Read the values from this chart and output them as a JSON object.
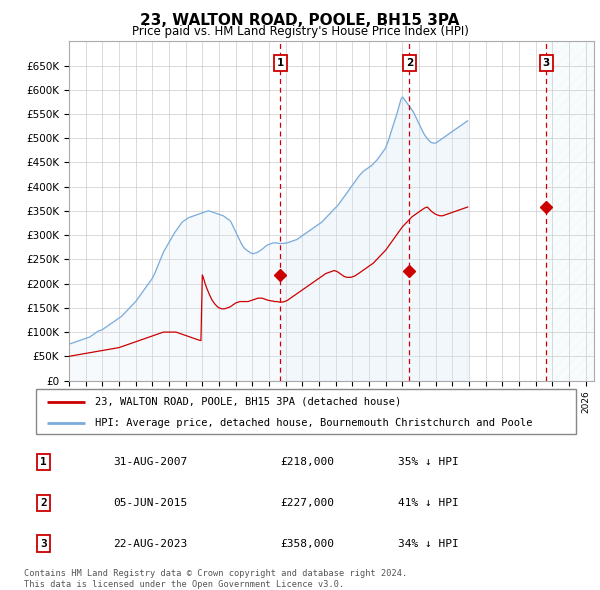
{
  "title": "23, WALTON ROAD, POOLE, BH15 3PA",
  "subtitle": "Price paid vs. HM Land Registry's House Price Index (HPI)",
  "ylim": [
    0,
    700000
  ],
  "yticks": [
    0,
    50000,
    100000,
    150000,
    200000,
    250000,
    300000,
    350000,
    400000,
    450000,
    500000,
    550000,
    600000,
    650000
  ],
  "ytick_labels": [
    "£0",
    "£50K",
    "£100K",
    "£150K",
    "£200K",
    "£250K",
    "£300K",
    "£350K",
    "£400K",
    "£450K",
    "£500K",
    "£550K",
    "£600K",
    "£650K"
  ],
  "xlim_start": 1995.0,
  "xlim_end": 2026.5,
  "sale_dates": [
    2007.667,
    2015.417,
    2023.639
  ],
  "sale_prices": [
    218000,
    227000,
    358000
  ],
  "sale_labels": [
    "1",
    "2",
    "3"
  ],
  "red_line_color": "#cc0000",
  "blue_line_color": "#7aabdb",
  "blue_fill_color": "#d6e8f7",
  "dashed_line_color": "#cc0000",
  "shaded_fill_color": "#d6e8f7",
  "legend_label_red": "23, WALTON ROAD, POOLE, BH15 3PA (detached house)",
  "legend_label_blue": "HPI: Average price, detached house, Bournemouth Christchurch and Poole",
  "table_rows": [
    [
      "1",
      "31-AUG-2007",
      "£218,000",
      "35% ↓ HPI"
    ],
    [
      "2",
      "05-JUN-2015",
      "£227,000",
      "41% ↓ HPI"
    ],
    [
      "3",
      "22-AUG-2023",
      "£358,000",
      "34% ↓ HPI"
    ]
  ],
  "footnote": "Contains HM Land Registry data © Crown copyright and database right 2024.\nThis data is licensed under the Open Government Licence v3.0.",
  "hpi_monthly": {
    "start_year": 1995,
    "start_month": 1,
    "values": [
      75000,
      76000,
      77000,
      78000,
      79000,
      80000,
      81000,
      82000,
      83000,
      84000,
      85000,
      86000,
      87000,
      88000,
      89000,
      90000,
      92000,
      94000,
      96000,
      98000,
      100000,
      102000,
      103000,
      104000,
      105000,
      107000,
      109000,
      111000,
      113000,
      115000,
      117000,
      119000,
      121000,
      123000,
      125000,
      127000,
      129000,
      131000,
      133000,
      136000,
      139000,
      142000,
      145000,
      148000,
      151000,
      154000,
      157000,
      160000,
      163000,
      167000,
      171000,
      175000,
      179000,
      183000,
      187000,
      191000,
      195000,
      199000,
      203000,
      207000,
      211000,
      217000,
      223000,
      230000,
      237000,
      244000,
      251000,
      258000,
      265000,
      270000,
      275000,
      280000,
      285000,
      290000,
      295000,
      300000,
      305000,
      309000,
      313000,
      317000,
      321000,
      325000,
      328000,
      330000,
      332000,
      334000,
      336000,
      337000,
      338000,
      339000,
      340000,
      341000,
      342000,
      343000,
      344000,
      345000,
      346000,
      347000,
      348000,
      349000,
      350000,
      350000,
      349000,
      348000,
      347000,
      346000,
      345000,
      344000,
      343000,
      342000,
      341000,
      340000,
      338000,
      336000,
      334000,
      332000,
      330000,
      325000,
      319000,
      313000,
      307000,
      301000,
      295000,
      289000,
      283000,
      278000,
      274000,
      271000,
      269000,
      267000,
      265000,
      263000,
      262000,
      262000,
      263000,
      264000,
      265000,
      267000,
      269000,
      271000,
      273000,
      276000,
      278000,
      280000,
      281000,
      282000,
      283000,
      284000,
      284000,
      284000,
      284000,
      283000,
      283000,
      283000,
      283000,
      283000,
      284000,
      284000,
      285000,
      286000,
      287000,
      288000,
      289000,
      290000,
      291000,
      293000,
      295000,
      297000,
      299000,
      301000,
      303000,
      305000,
      307000,
      309000,
      311000,
      313000,
      315000,
      317000,
      319000,
      321000,
      323000,
      325000,
      327000,
      330000,
      333000,
      336000,
      339000,
      342000,
      345000,
      348000,
      351000,
      354000,
      357000,
      360000,
      363000,
      367000,
      371000,
      375000,
      379000,
      383000,
      387000,
      391000,
      395000,
      399000,
      403000,
      407000,
      411000,
      415000,
      419000,
      423000,
      426000,
      429000,
      432000,
      434000,
      436000,
      438000,
      440000,
      442000,
      444000,
      447000,
      450000,
      453000,
      456000,
      460000,
      464000,
      468000,
      472000,
      476000,
      480000,
      488000,
      496000,
      505000,
      514000,
      523000,
      532000,
      541000,
      550000,
      560000,
      570000,
      580000,
      585000,
      582000,
      578000,
      574000,
      570000,
      566000,
      562000,
      558000,
      554000,
      548000,
      542000,
      536000,
      530000,
      524000,
      518000,
      512000,
      507000,
      503000,
      499000,
      496000,
      493000,
      491000,
      490000,
      490000,
      490000,
      492000,
      494000,
      496000,
      498000,
      500000,
      502000,
      504000,
      506000,
      508000,
      510000,
      512000,
      514000,
      516000,
      518000,
      520000,
      522000,
      524000,
      526000,
      528000,
      530000,
      532000,
      534000,
      536000
    ]
  },
  "red_monthly": {
    "start_year": 1995,
    "start_month": 1,
    "values": [
      50000,
      50500,
      51000,
      51500,
      52000,
      52500,
      53000,
      53500,
      54000,
      54500,
      55000,
      55500,
      56000,
      56500,
      57000,
      57500,
      58000,
      58500,
      59000,
      59500,
      60000,
      60500,
      61000,
      61500,
      62000,
      62500,
      63000,
      63500,
      64000,
      64500,
      65000,
      65500,
      66000,
      66500,
      67000,
      67500,
      68000,
      69000,
      70000,
      71000,
      72000,
      73000,
      74000,
      75000,
      76000,
      77000,
      78000,
      79000,
      80000,
      81000,
      82000,
      83000,
      84000,
      85000,
      86000,
      87000,
      88000,
      89000,
      90000,
      91000,
      92000,
      93000,
      94000,
      95000,
      96000,
      97000,
      98000,
      99000,
      100000,
      100000,
      100000,
      100000,
      100000,
      100000,
      100000,
      100000,
      100000,
      100000,
      99000,
      98000,
      97000,
      96000,
      95000,
      94000,
      93000,
      92000,
      91000,
      90000,
      89000,
      88000,
      87000,
      86000,
      85000,
      84000,
      83000,
      82500,
      218000,
      210000,
      200000,
      192000,
      185000,
      178000,
      172000,
      166000,
      162000,
      158000,
      155000,
      152000,
      150000,
      149000,
      148000,
      148000,
      148000,
      149000,
      150000,
      151000,
      152000,
      154000,
      156000,
      158000,
      160000,
      161000,
      162000,
      163000,
      163000,
      163000,
      163000,
      163000,
      163000,
      163000,
      164000,
      165000,
      166000,
      167000,
      168000,
      169000,
      170000,
      170000,
      170000,
      170000,
      169000,
      168000,
      167000,
      166000,
      165000,
      165000,
      164000,
      164000,
      163000,
      163000,
      163000,
      162000,
      162000,
      162000,
      162000,
      163000,
      164000,
      165000,
      167000,
      169000,
      171000,
      173000,
      175000,
      177000,
      179000,
      181000,
      183000,
      185000,
      187000,
      189000,
      191000,
      193000,
      195000,
      197000,
      199000,
      201000,
      203000,
      205000,
      207000,
      209000,
      211000,
      213000,
      215000,
      217000,
      219000,
      221000,
      222000,
      223000,
      224000,
      225000,
      226000,
      227000,
      226000,
      225000,
      223000,
      221000,
      219000,
      217000,
      215000,
      214000,
      213000,
      213000,
      213000,
      213000,
      214000,
      215000,
      216000,
      218000,
      220000,
      222000,
      224000,
      226000,
      228000,
      230000,
      232000,
      234000,
      236000,
      238000,
      240000,
      242000,
      245000,
      248000,
      251000,
      254000,
      257000,
      260000,
      263000,
      266000,
      269000,
      273000,
      277000,
      281000,
      285000,
      289000,
      293000,
      297000,
      301000,
      305000,
      309000,
      313000,
      317000,
      320000,
      323000,
      326000,
      329000,
      332000,
      335000,
      338000,
      340000,
      342000,
      344000,
      346000,
      348000,
      350000,
      352000,
      354000,
      356000,
      357000,
      358000,
      355000,
      352000,
      349000,
      347000,
      345000,
      343000,
      342000,
      341000,
      340000,
      340000,
      340000,
      341000,
      342000,
      343000,
      344000,
      345000,
      346000,
      347000,
      348000,
      349000,
      350000,
      351000,
      352000,
      353000,
      354000,
      355000,
      356000,
      357000,
      358000
    ]
  }
}
